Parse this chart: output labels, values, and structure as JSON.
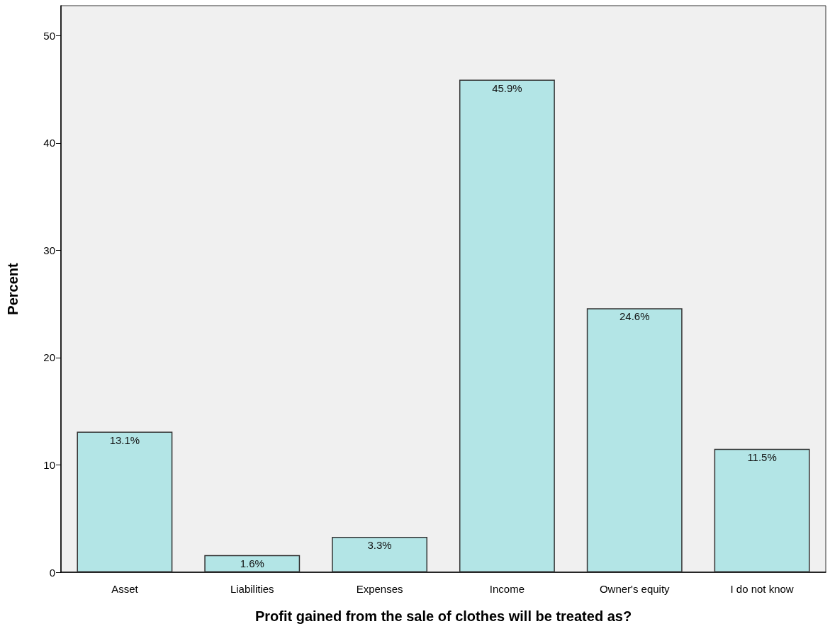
{
  "chart_data": {
    "type": "bar",
    "xlabel": "Profit gained from the sale of clothes will be treated as?",
    "ylabel": "Percent",
    "categories": [
      "Asset",
      "Liabilities",
      "Expenses",
      "Income",
      "Owner's equity",
      "I do not know"
    ],
    "values": [
      13.1,
      1.6,
      3.3,
      45.9,
      24.6,
      11.5
    ],
    "value_labels": [
      "13.1%",
      "1.6%",
      "3.3%",
      "45.9%",
      "24.6%",
      "11.5%"
    ],
    "color": "#b3e5e6",
    "ylim": [
      0,
      52.8
    ],
    "yticks": [
      0,
      10,
      20,
      30,
      40,
      50
    ],
    "grid": false
  }
}
